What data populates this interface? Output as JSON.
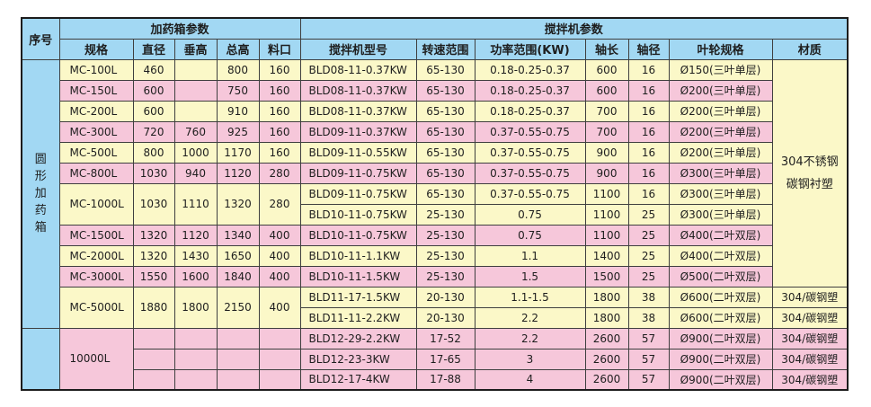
{
  "colors": {
    "header_blue": "#a2d8f3",
    "row_yellow": "#fbf8c8",
    "row_pink": "#f6c7da",
    "border": "#3f3f3f",
    "text": "#1e1e1e"
  },
  "table": {
    "header": {
      "serial": "序号",
      "box_group": "加药箱参数",
      "mixer_group": "搅拌机参数",
      "box_columns": [
        "规格",
        "直径",
        "垂高",
        "总高",
        "料口"
      ],
      "mixer_columns": [
        "搅拌机型号",
        "转速范围",
        "功率范围(KW)",
        "轴长",
        "轴径",
        "叶轮规格",
        "材质"
      ]
    },
    "serial_cells": [
      {
        "label": "圆形加药箱",
        "vertical": true,
        "rowspan": 13
      },
      {
        "label": "",
        "vertical": false,
        "rowspan": 3
      }
    ],
    "merged_material": {
      "lines": [
        "304不锈钢",
        "碳钢衬塑"
      ],
      "rowspan": 11
    },
    "groups": [
      {
        "tint": "yellow",
        "spec": "MC-100L",
        "dims": [
          "460",
          "",
          "800",
          "160"
        ],
        "mixers": [
          {
            "model": "BLD08-11-0.37KW",
            "speed": "65-130",
            "power": "0.18-0.25-0.37",
            "shaft_length": "600",
            "shaft_diameter": "16",
            "impeller": "Ø150(三叶单层)",
            "material": ""
          }
        ]
      },
      {
        "tint": "pink",
        "spec": "MC-150L",
        "dims": [
          "600",
          "",
          "750",
          "160"
        ],
        "mixers": [
          {
            "model": "BLD08-11-0.37KW",
            "speed": "65-130",
            "power": "0.18-0.25-0.37",
            "shaft_length": "600",
            "shaft_diameter": "16",
            "impeller": "Ø200(三叶单层)",
            "material": ""
          }
        ]
      },
      {
        "tint": "yellow",
        "spec": "MC-200L",
        "dims": [
          "600",
          "",
          "910",
          "160"
        ],
        "mixers": [
          {
            "model": "BLD08-11-0.37KW",
            "speed": "65-130",
            "power": "0.18-0.25-0.37",
            "shaft_length": "700",
            "shaft_diameter": "16",
            "impeller": "Ø200(三叶单层)",
            "material": ""
          }
        ]
      },
      {
        "tint": "pink",
        "spec": "MC-300L",
        "dims": [
          "720",
          "760",
          "925",
          "160"
        ],
        "mixers": [
          {
            "model": "BLD09-11-0.37KW",
            "speed": "65-130",
            "power": "0.37-0.55-0.75",
            "shaft_length": "700",
            "shaft_diameter": "16",
            "impeller": "Ø200(三叶单层)",
            "material": ""
          }
        ]
      },
      {
        "tint": "yellow",
        "spec": "MC-500L",
        "dims": [
          "800",
          "1000",
          "1170",
          "160"
        ],
        "mixers": [
          {
            "model": "BLD09-11-0.55KW",
            "speed": "65-130",
            "power": "0.37-0.55-0.75",
            "shaft_length": "900",
            "shaft_diameter": "16",
            "impeller": "Ø200(三叶单层)",
            "material": ""
          }
        ]
      },
      {
        "tint": "pink",
        "spec": "MC-800L",
        "dims": [
          "1030",
          "940",
          "1120",
          "280"
        ],
        "mixers": [
          {
            "model": "BLD09-11-0.75KW",
            "speed": "65-130",
            "power": "0.37-0.55-0.75",
            "shaft_length": "900",
            "shaft_diameter": "16",
            "impeller": "Ø300(三叶单层)",
            "material": ""
          }
        ]
      },
      {
        "tint": "yellow",
        "spec": "MC-1000L",
        "dims": [
          "1030",
          "1110",
          "1320",
          "280"
        ],
        "mixers": [
          {
            "model": "BLD09-11-0.75KW",
            "speed": "65-130",
            "power": "0.37-0.55-0.75",
            "shaft_length": "1100",
            "shaft_diameter": "16",
            "impeller": "Ø300(三叶单层)",
            "material": ""
          },
          {
            "model": "BLD10-11-0.75KW",
            "speed": "25-130",
            "power": "0.75",
            "shaft_length": "1100",
            "shaft_diameter": "25",
            "impeller": "Ø300(三叶单层)",
            "material": ""
          }
        ]
      },
      {
        "tint": "pink",
        "spec": "MC-1500L",
        "dims": [
          "1320",
          "1120",
          "1340",
          "400"
        ],
        "mixers": [
          {
            "model": "BLD10-11-0.75KW",
            "speed": "25-130",
            "power": "0.75",
            "shaft_length": "1100",
            "shaft_diameter": "25",
            "impeller": "Ø400(二叶双层)",
            "material": ""
          }
        ]
      },
      {
        "tint": "yellow",
        "spec": "MC-2000L",
        "dims": [
          "1320",
          "1430",
          "1650",
          "400"
        ],
        "mixers": [
          {
            "model": "BLD10-11-1.1KW",
            "speed": "25-130",
            "power": "1.1",
            "shaft_length": "1400",
            "shaft_diameter": "25",
            "impeller": "Ø400(二叶双层)",
            "material": ""
          }
        ]
      },
      {
        "tint": "pink",
        "spec": "MC-3000L",
        "dims": [
          "1550",
          "1600",
          "1840",
          "400"
        ],
        "mixers": [
          {
            "model": "BLD10-11-1.5KW",
            "speed": "25-130",
            "power": "1.5",
            "shaft_length": "1500",
            "shaft_diameter": "25",
            "impeller": "Ø500(二叶双层)",
            "material": ""
          }
        ]
      },
      {
        "tint": "yellow",
        "spec": "MC-5000L",
        "dims": [
          "1880",
          "1800",
          "2150",
          "400"
        ],
        "mixers": [
          {
            "model": "BLD11-17-1.5KW",
            "speed": "20-130",
            "power": "1.1-1.5",
            "shaft_length": "1800",
            "shaft_diameter": "38",
            "impeller": "Ø600(二叶双层)",
            "material": "304/碳钢塑"
          },
          {
            "model": "BLD11-11-2.2KW",
            "speed": "20-130",
            "power": "2.2",
            "shaft_length": "1800",
            "shaft_diameter": "38",
            "impeller": "Ø600(二叶双层)",
            "material": "304/碳钢塑"
          }
        ]
      },
      {
        "tint": "pink",
        "spec": "10000L",
        "dims_merged": false,
        "dims": [
          "",
          "",
          "",
          ""
        ],
        "mixers": [
          {
            "model": "BLD12-29-2.2KW",
            "speed": "17-52",
            "power": "2.2",
            "shaft_length": "2600",
            "shaft_diameter": "57",
            "impeller": "Ø900(二叶双层)",
            "material": "304/碳钢塑"
          },
          {
            "model": "BLD12-23-3KW",
            "speed": "17-65",
            "power": "3",
            "shaft_length": "2600",
            "shaft_diameter": "57",
            "impeller": "Ø900(二叶双层)",
            "material": "304/碳钢塑"
          },
          {
            "model": "BLD12-17-4KW",
            "speed": "17-88",
            "power": "4",
            "shaft_length": "2600",
            "shaft_diameter": "57",
            "impeller": "Ø900(二叶双层)",
            "material": "304/碳钢塑"
          }
        ]
      }
    ]
  }
}
